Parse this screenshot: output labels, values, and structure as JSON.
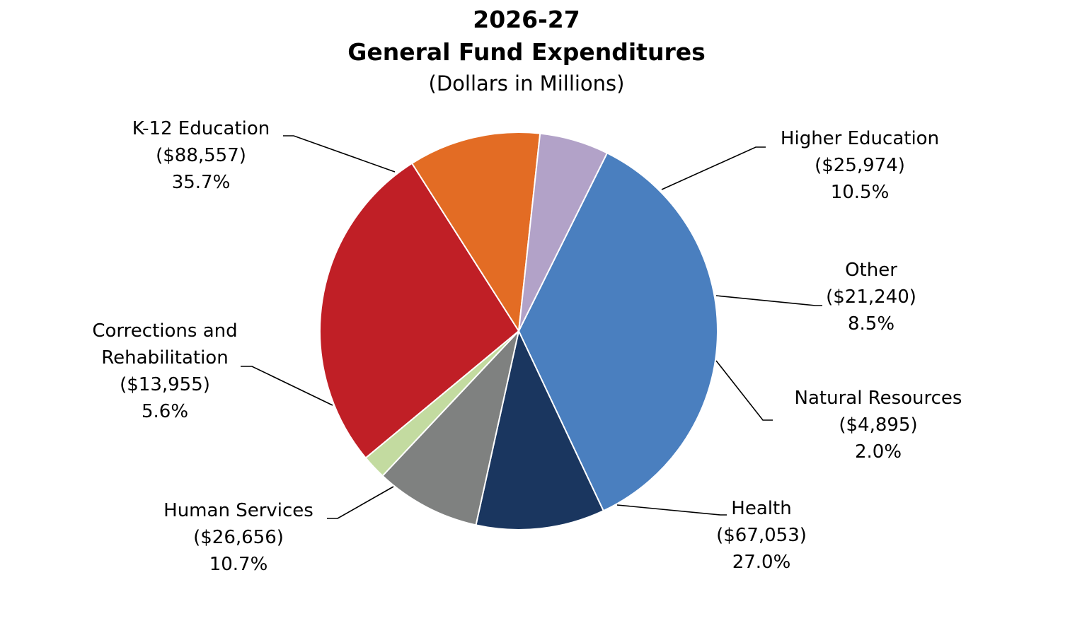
{
  "chart_data": {
    "type": "pie",
    "title": "2026-27",
    "subtitle": "General Fund Expenditures",
    "unit_note": "(Dollars in Millions)",
    "slices": [
      {
        "label": "K-12 Education",
        "label_lines": [
          "K-12 Education"
        ],
        "value": 88557,
        "value_text": "($88,557)",
        "percent_text": "35.7%",
        "color": "#4a7fbf"
      },
      {
        "label": "Higher Education",
        "label_lines": [
          "Higher Education"
        ],
        "value": 25974,
        "value_text": "($25,974)",
        "percent_text": "10.5%",
        "color": "#1a365f"
      },
      {
        "label": "Other",
        "label_lines": [
          "Other"
        ],
        "value": 21240,
        "value_text": "($21,240)",
        "percent_text": "8.5%",
        "color": "#7f8180"
      },
      {
        "label": "Natural Resources",
        "label_lines": [
          "Natural Resources"
        ],
        "value": 4895,
        "value_text": "($4,895)",
        "percent_text": "2.0%",
        "color": "#c3dba0"
      },
      {
        "label": "Health",
        "label_lines": [
          "Health"
        ],
        "value": 67053,
        "value_text": "($67,053)",
        "percent_text": "27.0%",
        "color": "#c01f26"
      },
      {
        "label": "Human Services",
        "label_lines": [
          "Human Services"
        ],
        "value": 26656,
        "value_text": "($26,656)",
        "percent_text": "10.7%",
        "color": "#e36c24"
      },
      {
        "label": "Corrections and Rehabilitation",
        "label_lines": [
          "Corrections and",
          "Rehabilitation"
        ],
        "value": 13955,
        "value_text": "($13,955)",
        "percent_text": "5.6%",
        "color": "#b2a2c8"
      }
    ],
    "start_angle_deg": 26.4,
    "direction": "clockwise",
    "legend": "none"
  }
}
